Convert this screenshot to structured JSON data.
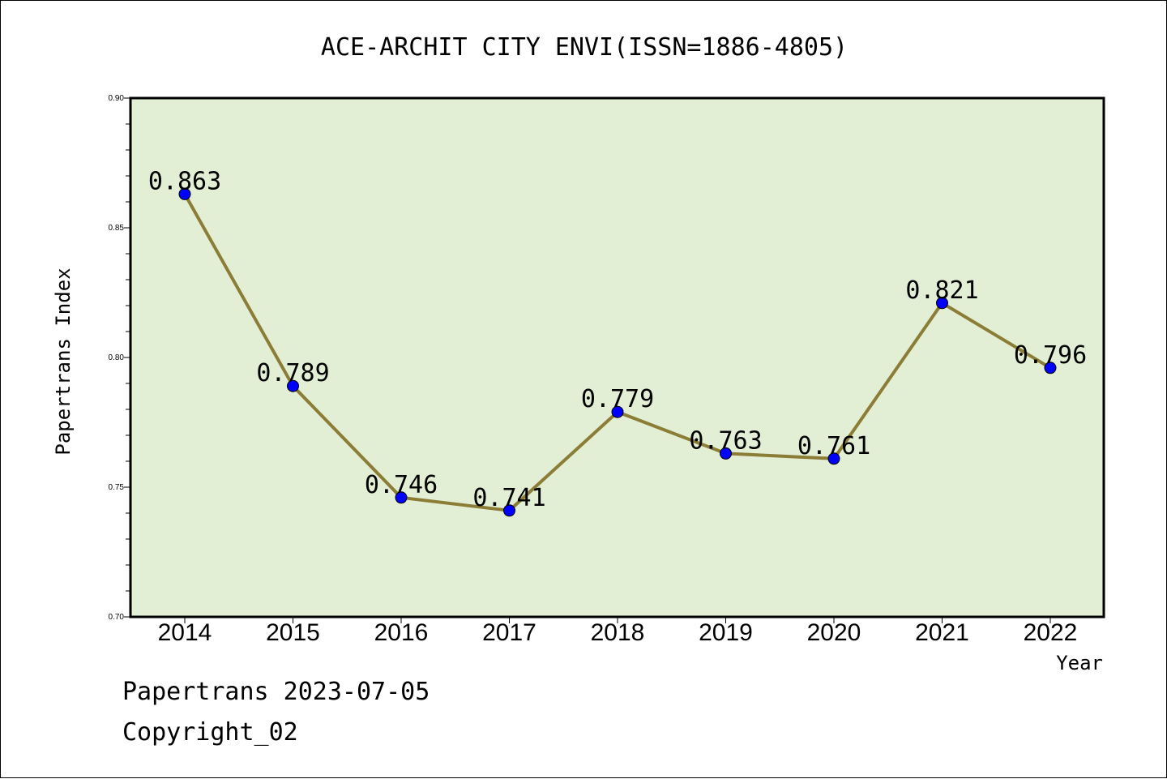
{
  "chart_data": {
    "type": "line",
    "title": "ACE-ARCHIT CITY ENVI(ISSN=1886-4805)",
    "xlabel": "Year",
    "ylabel": "Papertrans Index",
    "categories": [
      "2014",
      "2015",
      "2016",
      "2017",
      "2018",
      "2019",
      "2020",
      "2021",
      "2022"
    ],
    "series": [
      {
        "values": [
          0.863,
          0.789,
          0.746,
          0.741,
          0.779,
          0.763,
          0.761,
          0.821,
          0.796
        ]
      }
    ],
    "data_labels": [
      "0.863",
      "0.789",
      "0.746",
      "0.741",
      "0.779",
      "0.763",
      "0.761",
      "0.821",
      "0.796"
    ],
    "ylim": [
      0.7,
      0.9
    ],
    "yticks": [
      "0.70",
      "0.75",
      "0.80",
      "0.85",
      "0.90"
    ],
    "grid": false,
    "legend": "none",
    "colors": {
      "plot_background": "#e2efd5",
      "line": "#8b7d35",
      "marker": "#0000ff"
    }
  },
  "footer": {
    "source_line": "Papertrans 2023-07-05",
    "copyright": "Copyright_02"
  }
}
